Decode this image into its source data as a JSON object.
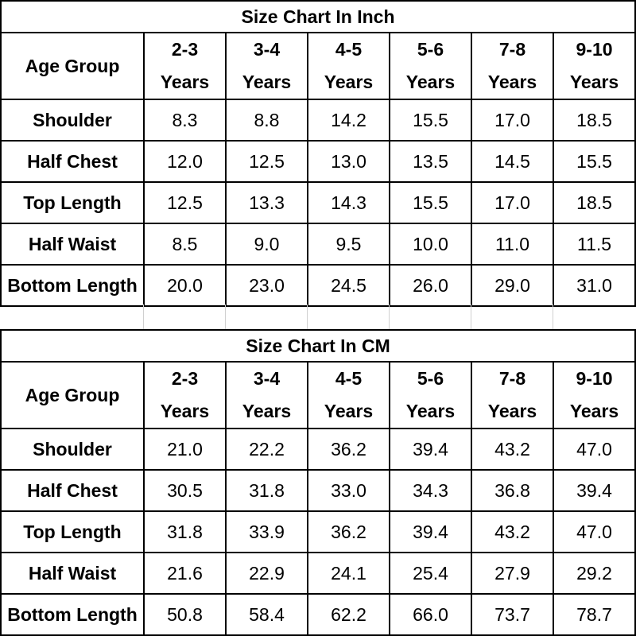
{
  "inch_chart": {
    "title": "Size Chart In Inch",
    "header_label": "Age Group",
    "ages": [
      {
        "range": "2-3",
        "unit": "Years"
      },
      {
        "range": "3-4",
        "unit": "Years"
      },
      {
        "range": "4-5",
        "unit": "Years"
      },
      {
        "range": "5-6",
        "unit": "Years"
      },
      {
        "range": "7-8",
        "unit": "Years"
      },
      {
        "range": "9-10",
        "unit": "Years"
      }
    ],
    "rows": [
      {
        "label": "Shoulder",
        "values": [
          "8.3",
          "8.8",
          "14.2",
          "15.5",
          "17.0",
          "18.5"
        ]
      },
      {
        "label": "Half Chest",
        "values": [
          "12.0",
          "12.5",
          "13.0",
          "13.5",
          "14.5",
          "15.5"
        ]
      },
      {
        "label": "Top Length",
        "values": [
          "12.5",
          "13.3",
          "14.3",
          "15.5",
          "17.0",
          "18.5"
        ]
      },
      {
        "label": "Half Waist",
        "values": [
          "8.5",
          "9.0",
          "9.5",
          "10.0",
          "11.0",
          "11.5"
        ]
      },
      {
        "label": "Bottom Length",
        "values": [
          "20.0",
          "23.0",
          "24.5",
          "26.0",
          "29.0",
          "31.0"
        ]
      }
    ]
  },
  "cm_chart": {
    "title": "Size Chart In CM",
    "header_label": "Age Group",
    "ages": [
      {
        "range": "2-3",
        "unit": "Years"
      },
      {
        "range": "3-4",
        "unit": "Years"
      },
      {
        "range": "4-5",
        "unit": "Years"
      },
      {
        "range": "5-6",
        "unit": "Years"
      },
      {
        "range": "7-8",
        "unit": "Years"
      },
      {
        "range": "9-10",
        "unit": "Years"
      }
    ],
    "rows": [
      {
        "label": "Shoulder",
        "values": [
          "21.0",
          "22.2",
          "36.2",
          "39.4",
          "43.2",
          "47.0"
        ]
      },
      {
        "label": "Half Chest",
        "values": [
          "30.5",
          "31.8",
          "33.0",
          "34.3",
          "36.8",
          "39.4"
        ]
      },
      {
        "label": "Top Length",
        "values": [
          "31.8",
          "33.9",
          "36.2",
          "39.4",
          "43.2",
          "47.0"
        ]
      },
      {
        "label": "Half Waist",
        "values": [
          "21.6",
          "22.9",
          "24.1",
          "25.4",
          "27.9",
          "29.2"
        ]
      },
      {
        "label": "Bottom Length",
        "values": [
          "50.8",
          "58.4",
          "62.2",
          "66.0",
          "73.7",
          "78.7"
        ]
      }
    ]
  }
}
